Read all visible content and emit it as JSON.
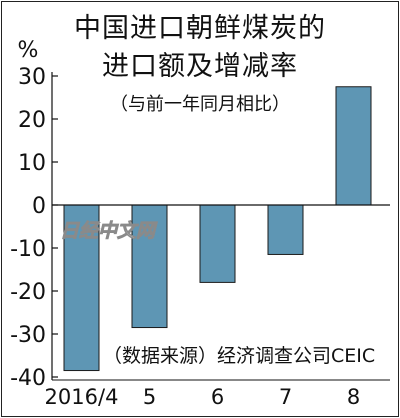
{
  "title_line1": "中国进口朝鲜煤炭的",
  "title_line2": "进口额及增减率",
  "subtitle": "（与前一年同月相比）",
  "unit": "%",
  "source_note": "（数据来源）经济调查公司CEIC",
  "watermark": "日经中文网",
  "colors": {
    "bar_fill": "#5e96b4",
    "bar_stroke": "#1a1a1a",
    "axis": "#111111"
  },
  "chart_data": {
    "type": "bar",
    "categories": [
      "2016/4",
      "5",
      "6",
      "7",
      "8"
    ],
    "values": [
      -38.5,
      -28.5,
      -18,
      -11.5,
      27.5
    ],
    "ylim": [
      -40,
      30
    ],
    "yticks": [
      30,
      20,
      10,
      0,
      -10,
      -20,
      -30,
      -40
    ],
    "ylabel": "%"
  }
}
